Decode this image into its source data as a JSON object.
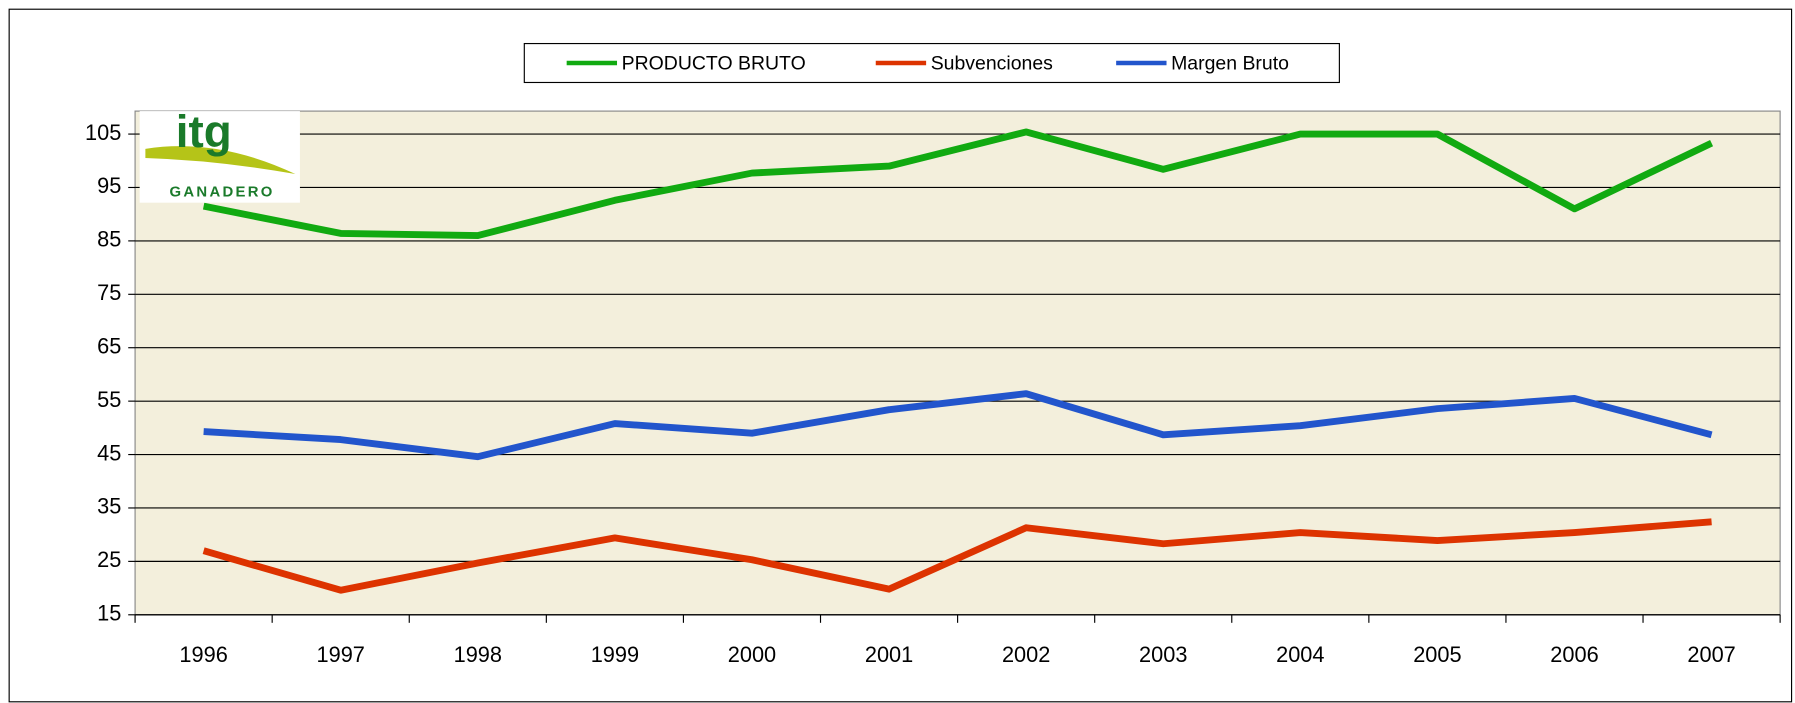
{
  "chart_data": {
    "type": "line",
    "logo": {
      "mark": "itg",
      "text": "GANADERO"
    },
    "categories": [
      "1996",
      "1997",
      "1998",
      "1999",
      "2000",
      "2001",
      "2002",
      "2003",
      "2004",
      "2005",
      "2006",
      "2007"
    ],
    "series": [
      {
        "name": "PRODUCTO BRUTO",
        "color": "#11aa11",
        "values": [
          91.5,
          86.4,
          86,
          92.6,
          97.7,
          99,
          105.4,
          98.4,
          105,
          105,
          91,
          103.3
        ]
      },
      {
        "name": "Subvenciones",
        "color": "#dd3300",
        "values": [
          27,
          19.6,
          24.7,
          29.4,
          25.3,
          19.8,
          31.3,
          28.3,
          30.4,
          28.9,
          30.4,
          32.4
        ]
      },
      {
        "name": "Margen Bruto",
        "color": "#2255cc",
        "values": [
          49.3,
          47.8,
          44.6,
          50.8,
          49,
          53.4,
          56.4,
          48.7,
          50.4,
          53.6,
          55.5,
          48.7
        ]
      }
    ],
    "ylim": [
      15,
      109.3
    ],
    "yticks": [
      15,
      25,
      35,
      45,
      55,
      65,
      75,
      85,
      95,
      105
    ],
    "grid": true,
    "legend": "top"
  }
}
